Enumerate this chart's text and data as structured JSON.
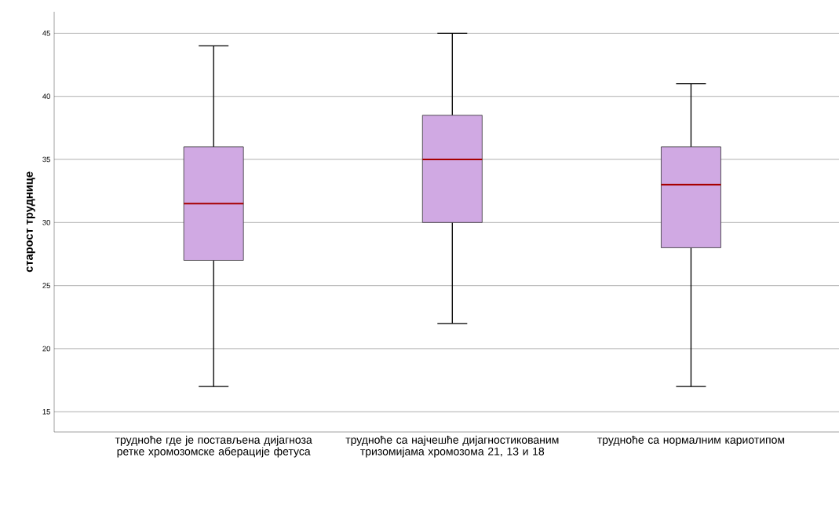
{
  "chart_data": {
    "type": "box",
    "ylabel": "старост труднице",
    "categories": [
      "трудноће где је постављена дијагноза ретке хромозомске аберације фетуса",
      "трудноће са најчешће дијагностикованим тризомијама хромозома 21, 13 и 18",
      "трудноће са нормалним кариотипом"
    ],
    "boxes": [
      {
        "low": 17,
        "q1": 27,
        "median": 31.5,
        "q3": 36,
        "high": 44
      },
      {
        "low": 22,
        "q1": 30,
        "median": 35,
        "q3": 38.5,
        "high": 45
      },
      {
        "low": 17,
        "q1": 28,
        "median": 33,
        "q3": 36,
        "high": 41
      }
    ],
    "color": "#d0a9e3",
    "ylim": [
      13.4,
      46.7
    ],
    "yticks": [
      15,
      20,
      25,
      30,
      35,
      40,
      45
    ],
    "grid": "y"
  }
}
